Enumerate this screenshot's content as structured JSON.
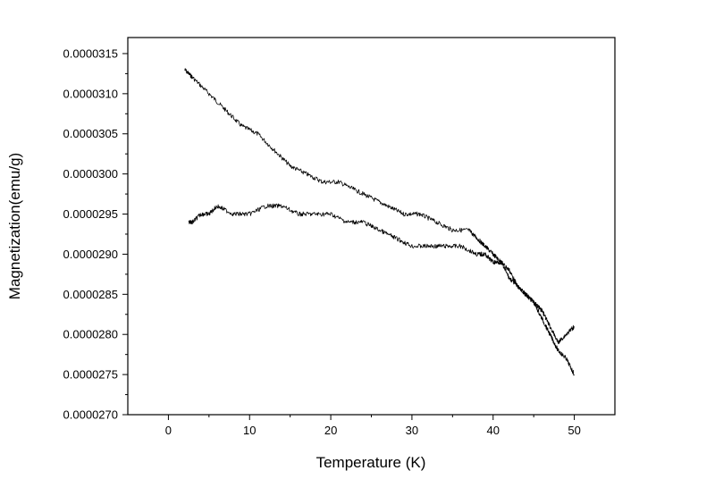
{
  "chart_data": {
    "type": "line",
    "title": "",
    "xlabel": "Temperature (K)",
    "ylabel": "Magnetization(emu/g)",
    "xlim": [
      -5,
      55
    ],
    "ylim": [
      2.7e-05,
      3.17e-05
    ],
    "x_ticks": [
      0,
      10,
      20,
      30,
      40,
      50
    ],
    "x_tick_labels": [
      "0",
      "10",
      "20",
      "30",
      "40",
      "50"
    ],
    "y_ticks": [
      2.7e-05,
      2.75e-05,
      2.8e-05,
      2.85e-05,
      2.9e-05,
      2.95e-05,
      3e-05,
      3.05e-05,
      3.1e-05,
      3.15e-05
    ],
    "y_tick_labels": [
      "0.0000270",
      "0.0000275",
      "0.0000280",
      "0.0000285",
      "0.0000290",
      "0.0000295",
      "0.0000300",
      "0.0000305",
      "0.0000310",
      "0.0000315"
    ],
    "grid": false,
    "legend": "none",
    "line_color": "#000000",
    "series": [
      {
        "x": [
          2,
          3,
          5,
          7,
          9,
          11,
          13,
          15,
          17,
          19,
          21,
          23,
          25,
          27,
          29,
          31,
          33,
          35,
          37,
          38,
          39,
          40,
          41,
          42,
          43,
          44,
          45,
          46,
          47,
          48,
          49,
          50
        ],
        "y": [
          3.13e-05,
          3.12e-05,
          3.1e-05,
          3.08e-05,
          3.06e-05,
          3.05e-05,
          3.03e-05,
          3.01e-05,
          3e-05,
          2.99e-05,
          2.99e-05,
          2.98e-05,
          2.97e-05,
          2.96e-05,
          2.95e-05,
          2.95e-05,
          2.94e-05,
          2.93e-05,
          2.93e-05,
          2.92e-05,
          2.91e-05,
          2.9e-05,
          2.89e-05,
          2.88e-05,
          2.86e-05,
          2.85e-05,
          2.84e-05,
          2.82e-05,
          2.8e-05,
          2.78e-05,
          2.77e-05,
          2.75e-05
        ]
      },
      {
        "x": [
          2.5,
          3,
          4,
          5,
          6,
          8,
          10,
          12,
          14,
          16,
          18,
          20,
          22,
          24,
          26,
          28,
          30,
          32,
          34,
          36,
          38,
          39,
          40,
          41,
          42,
          43,
          44,
          45,
          46,
          47,
          48,
          49,
          50
        ],
        "y": [
          2.94e-05,
          2.94e-05,
          2.95e-05,
          2.95e-05,
          2.96e-05,
          2.95e-05,
          2.95e-05,
          2.96e-05,
          2.96e-05,
          2.95e-05,
          2.95e-05,
          2.95e-05,
          2.94e-05,
          2.94e-05,
          2.93e-05,
          2.92e-05,
          2.91e-05,
          2.91e-05,
          2.91e-05,
          2.91e-05,
          2.9e-05,
          2.9e-05,
          2.89e-05,
          2.89e-05,
          2.87e-05,
          2.86e-05,
          2.85e-05,
          2.84e-05,
          2.83e-05,
          2.81e-05,
          2.79e-05,
          2.8e-05,
          2.81e-05
        ]
      }
    ]
  }
}
